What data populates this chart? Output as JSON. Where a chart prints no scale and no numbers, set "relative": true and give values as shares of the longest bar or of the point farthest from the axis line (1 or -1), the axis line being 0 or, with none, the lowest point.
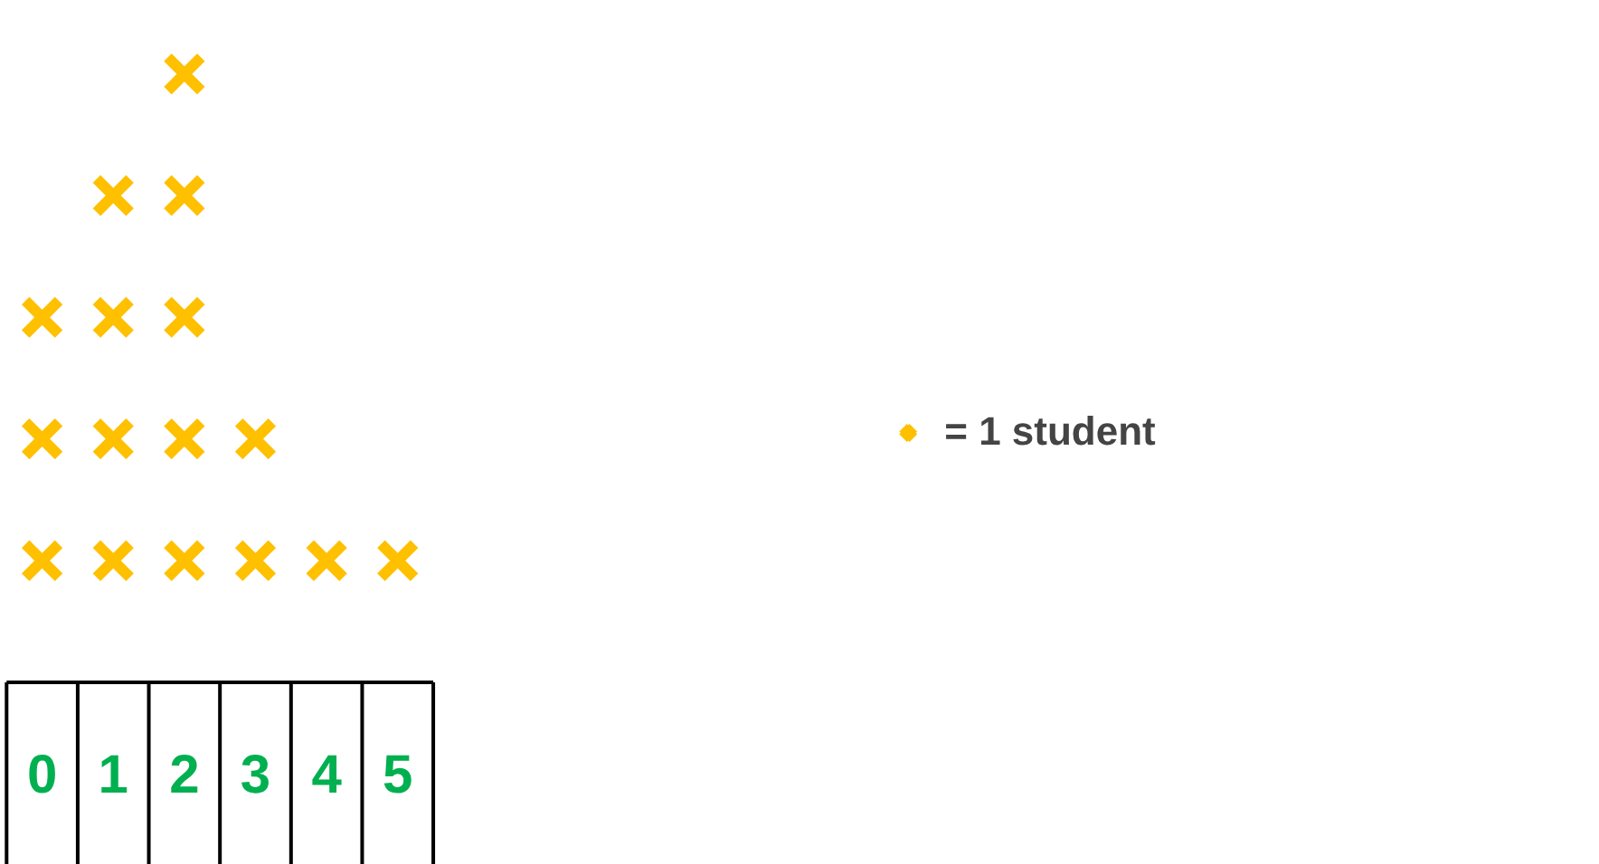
{
  "chart_data": {
    "type": "scatter",
    "relative": true,
    "marker": "cross",
    "legend": "right",
    "categories": [
      "0",
      "1",
      "2",
      "3",
      "4",
      "5"
    ],
    "series": [
      {
        "name": "= 1 student",
        "color": "#ffc000",
        "x": [
          "0",
          "0",
          "0",
          "1",
          "1",
          "1",
          "1",
          "2",
          "2",
          "2",
          "2",
          "2",
          "3",
          "3",
          "4",
          "5"
        ],
        "values": [
          0.2,
          0.4,
          0.6,
          0.2,
          0.4,
          0.6,
          0.8,
          0.2,
          0.4,
          0.6,
          0.8,
          1,
          0.2,
          0.4,
          0.2,
          0.2
        ]
      }
    ]
  }
}
